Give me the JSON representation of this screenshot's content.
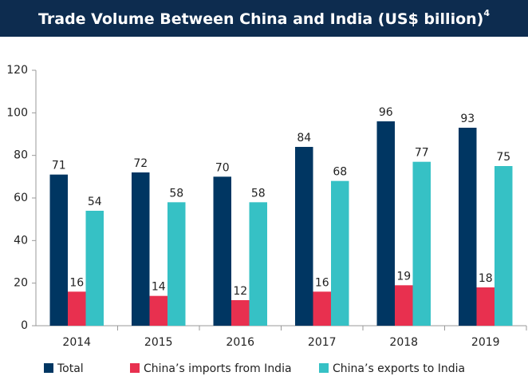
{
  "chart_data": {
    "type": "bar",
    "title": "Trade Volume Between China and India (US$ billion)",
    "title_note": "4",
    "categories": [
      "2014",
      "2015",
      "2016",
      "2017",
      "2018",
      "2019"
    ],
    "series": [
      {
        "name": "Total",
        "color": "#003662",
        "values": [
          71,
          72,
          70,
          84,
          96,
          93
        ]
      },
      {
        "name": "China’s imports from India",
        "color": "#e8304f",
        "values": [
          16,
          14,
          12,
          16,
          19,
          18
        ]
      },
      {
        "name": "China’s exports to India",
        "color": "#36c1c5",
        "values": [
          54,
          58,
          58,
          68,
          77,
          75
        ]
      }
    ],
    "ylim": [
      0,
      120
    ],
    "yticks": [
      0,
      20,
      40,
      60,
      80,
      100,
      120
    ],
    "grid": false,
    "legend": "bottom"
  }
}
